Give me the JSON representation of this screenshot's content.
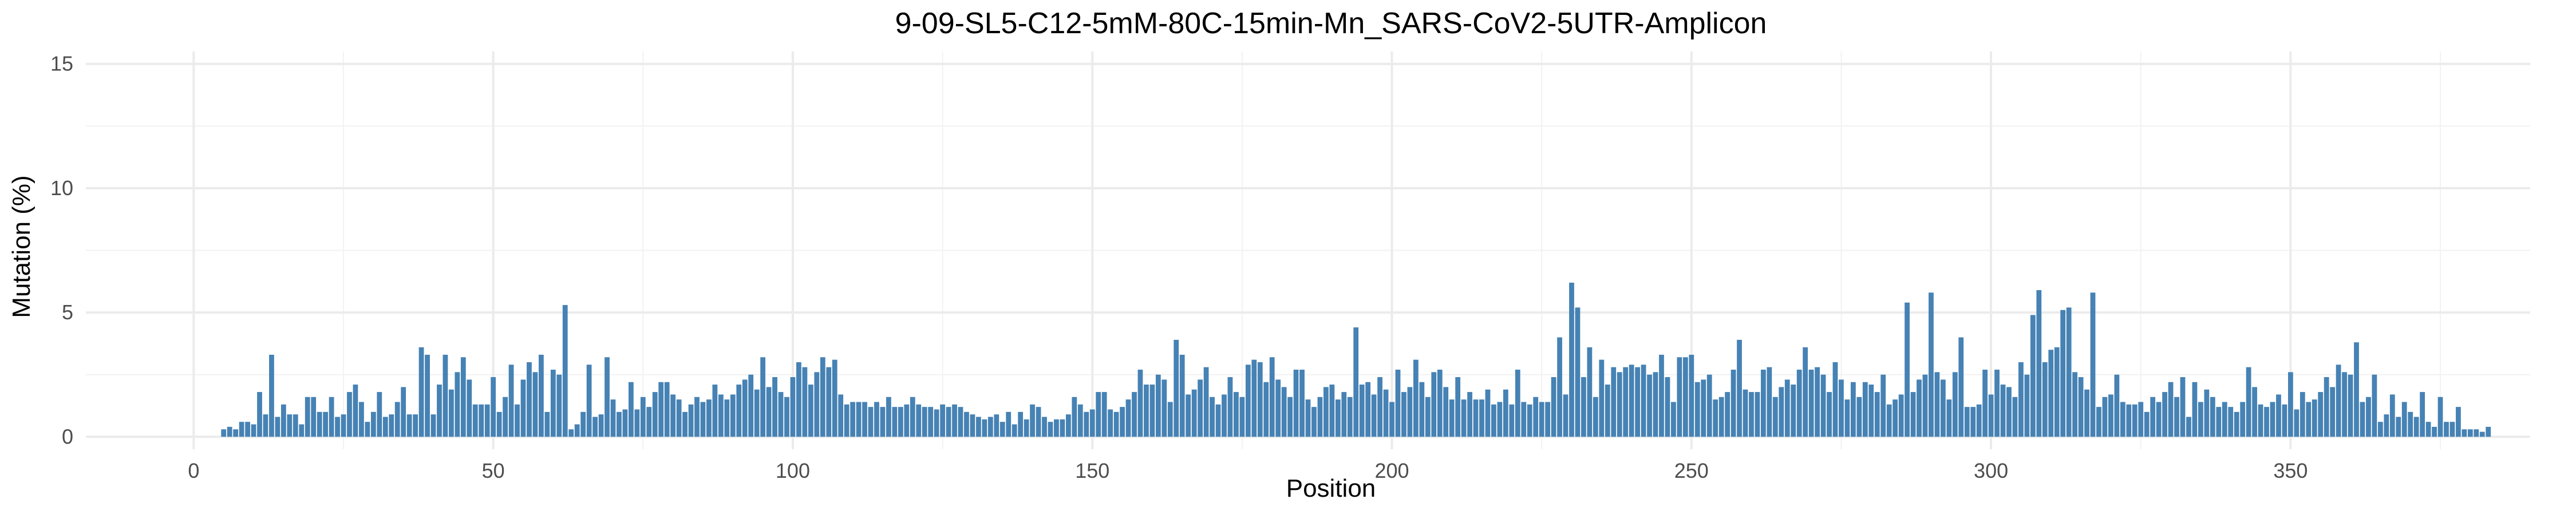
{
  "chart_data": {
    "type": "bar",
    "title": "9-09-SL5-C12-5mM-80C-15min-Mn_SARS-CoV2-5UTR-Amplicon",
    "xlabel": "Position",
    "ylabel": "Mutation (%)",
    "xlim": [
      -18,
      390
    ],
    "ylim": [
      -0.5,
      15.5
    ],
    "x_ticks": [
      0,
      50,
      100,
      150,
      200,
      250,
      300,
      350
    ],
    "y_ticks": [
      0,
      5,
      10,
      15
    ],
    "grid": true,
    "legend": "none",
    "bar_color": "#4682b4",
    "x_start": 5,
    "values": [
      0.3,
      0.4,
      0.3,
      0.6,
      0.6,
      0.5,
      1.8,
      0.9,
      3.3,
      0.8,
      1.3,
      0.9,
      0.9,
      0.5,
      1.6,
      1.6,
      1.0,
      1.0,
      1.6,
      0.8,
      0.9,
      1.8,
      2.1,
      1.4,
      0.6,
      1.0,
      1.8,
      0.8,
      0.9,
      1.4,
      2.0,
      0.9,
      0.9,
      3.6,
      3.3,
      0.9,
      2.1,
      3.3,
      1.9,
      2.6,
      3.2,
      2.3,
      1.3,
      1.3,
      1.3,
      2.4,
      1.0,
      1.6,
      2.9,
      1.3,
      2.3,
      3.0,
      2.6,
      3.3,
      1.0,
      2.7,
      2.5,
      5.3,
      0.3,
      0.5,
      1.0,
      2.9,
      0.8,
      0.9,
      3.2,
      1.5,
      1.0,
      1.1,
      2.2,
      1.1,
      1.6,
      1.2,
      1.8,
      2.2,
      2.2,
      1.7,
      1.5,
      1.0,
      1.3,
      1.6,
      1.4,
      1.5,
      2.1,
      1.7,
      1.5,
      1.7,
      2.1,
      2.3,
      2.5,
      1.9,
      3.2,
      2.0,
      2.4,
      1.8,
      1.6,
      2.4,
      3.0,
      2.8,
      2.1,
      2.6,
      3.2,
      2.8,
      3.1,
      1.7,
      1.3,
      1.4,
      1.4,
      1.4,
      1.2,
      1.4,
      1.2,
      1.6,
      1.2,
      1.2,
      1.3,
      1.6,
      1.3,
      1.2,
      1.2,
      1.1,
      1.3,
      1.2,
      1.3,
      1.2,
      1.0,
      0.9,
      0.8,
      0.7,
      0.8,
      0.9,
      0.6,
      1.0,
      0.5,
      1.0,
      0.7,
      1.3,
      1.2,
      0.8,
      0.6,
      0.7,
      0.7,
      0.9,
      1.6,
      1.3,
      1.0,
      1.1,
      1.8,
      1.8,
      1.1,
      1.0,
      1.2,
      1.5,
      1.8,
      2.7,
      2.1,
      2.1,
      2.5,
      2.3,
      1.4,
      3.9,
      3.3,
      1.7,
      1.9,
      2.3,
      2.8,
      1.6,
      1.3,
      1.7,
      2.4,
      1.8,
      1.6,
      2.9,
      3.1,
      3.0,
      2.2,
      3.2,
      2.3,
      2.0,
      1.6,
      2.7,
      2.7,
      1.5,
      1.2,
      1.6,
      2.0,
      2.1,
      1.5,
      1.8,
      1.6,
      4.4,
      2.1,
      2.2,
      1.7,
      2.4,
      1.9,
      1.4,
      2.7,
      1.8,
      2.0,
      3.1,
      2.2,
      1.6,
      2.6,
      2.7,
      2.0,
      1.5,
      2.4,
      1.5,
      1.8,
      1.5,
      1.5,
      1.9,
      1.3,
      1.4,
      1.9,
      1.3,
      2.7,
      1.4,
      1.3,
      1.6,
      1.4,
      1.4,
      2.4,
      4.0,
      1.7,
      6.2,
      5.2,
      2.4,
      3.6,
      1.6,
      3.1,
      2.1,
      2.8,
      2.6,
      2.8,
      2.9,
      2.8,
      2.9,
      2.5,
      2.6,
      3.3,
      2.4,
      1.4,
      3.2,
      3.2,
      3.3,
      2.2,
      2.3,
      2.5,
      1.5,
      1.6,
      1.8,
      2.7,
      3.9,
      1.9,
      1.8,
      1.8,
      2.7,
      2.8,
      1.6,
      2.0,
      2.3,
      2.1,
      2.7,
      3.6,
      2.7,
      2.8,
      2.5,
      1.8,
      3.0,
      2.3,
      1.5,
      2.2,
      1.6,
      2.2,
      2.1,
      1.8,
      2.5,
      1.3,
      1.5,
      1.7,
      5.4,
      1.8,
      2.3,
      2.5,
      5.8,
      2.6,
      2.3,
      1.5,
      2.6,
      4.0,
      1.2,
      1.2,
      1.3,
      2.7,
      1.7,
      2.7,
      2.1,
      2.0,
      1.6,
      3.0,
      2.5,
      4.9,
      5.9,
      3.0,
      3.5,
      3.6,
      5.1,
      5.2,
      2.6,
      2.4,
      1.9,
      5.8,
      1.2,
      1.6,
      1.7,
      2.5,
      1.4,
      1.3,
      1.3,
      1.4,
      1.0,
      1.6,
      1.4,
      1.8,
      2.2,
      1.6,
      2.4,
      0.8,
      2.2,
      1.4,
      1.9,
      1.6,
      1.2,
      1.4,
      1.2,
      1.0,
      1.4,
      2.8,
      2.0,
      1.3,
      1.2,
      1.4,
      1.7,
      1.3,
      2.6,
      1.1,
      1.8,
      1.4,
      1.5,
      1.8,
      2.4,
      2.0,
      2.9,
      2.6,
      2.5,
      3.8,
      1.4,
      1.6,
      2.5,
      0.6,
      0.9,
      1.7,
      0.8,
      1.4,
      1.0,
      0.8,
      1.8,
      0.6,
      0.4,
      1.6,
      0.6,
      0.6,
      1.2,
      0.3,
      0.3,
      0.3,
      0.2,
      0.4
    ]
  }
}
